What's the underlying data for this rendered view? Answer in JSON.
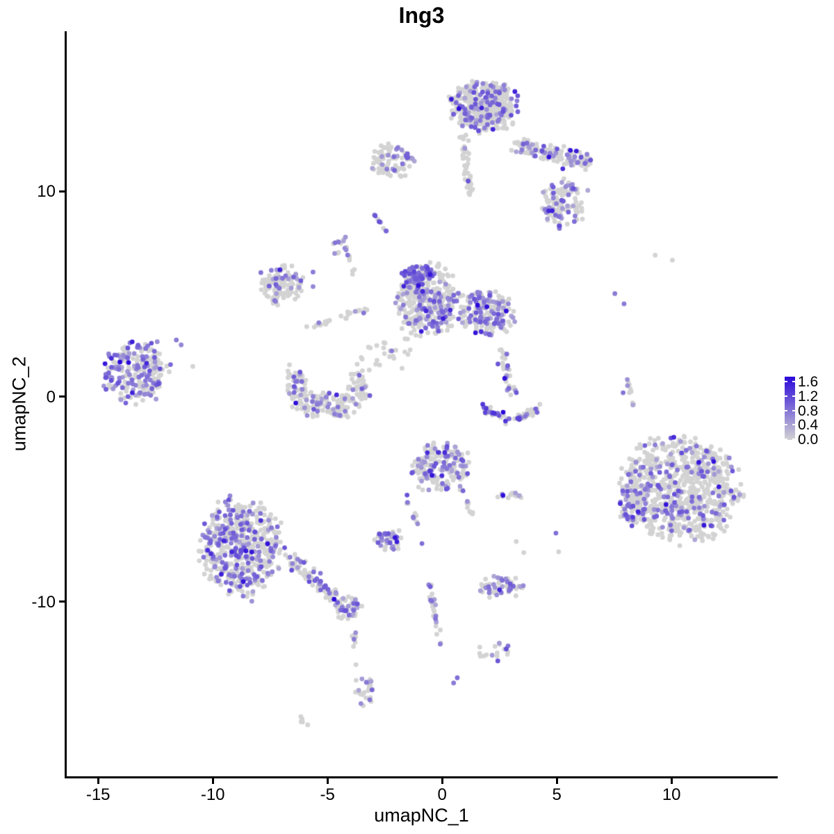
{
  "title": "Ing3",
  "axes": {
    "x": {
      "label": "umapNC_1",
      "tick_values": [
        -15,
        -10,
        -5,
        0,
        5,
        10
      ],
      "tick_labels": [
        "-15",
        "-10",
        "-5",
        "0",
        "5",
        "10"
      ]
    },
    "y": {
      "label": "umapNC_2",
      "tick_values": [
        10,
        0,
        -10
      ],
      "tick_labels": [
        "10",
        "0",
        "-10"
      ]
    }
  },
  "legend": {
    "entries": [
      {
        "text": "1.6",
        "value": 1.6
      },
      {
        "text": "1.2",
        "value": 1.2
      },
      {
        "text": "0.8",
        "value": 0.8
      },
      {
        "text": "0.4",
        "value": 0.4
      },
      {
        "text": "0.0",
        "value": 0.0
      }
    ],
    "low_color": "#D3D3D3",
    "high_color": "#2B09DA"
  },
  "chart_data": {
    "type": "scatter",
    "title": "Ing3",
    "xlabel": "umapNC_1",
    "ylabel": "umapNC_2",
    "xlim": [
      -16.4,
      14.6
    ],
    "ylim": [
      -18.5,
      17.8
    ],
    "grid": false,
    "legend_position": "right",
    "point_radius_px": 3.4,
    "value_max": 1.6,
    "color_low": "#D3D3D3",
    "color_high": "#2B09DA",
    "clusters": [
      {
        "name": "top-main-blob",
        "cx": 1.85,
        "cy": 14.2,
        "rx": 1.35,
        "ry": 1.15,
        "n": 430,
        "expr": 0.2
      },
      {
        "name": "top-left-subblob",
        "cx": -2.16,
        "cy": 11.5,
        "rx": 0.9,
        "ry": 0.75,
        "n": 85,
        "expr": 0.25
      },
      {
        "name": "top-arm-descender",
        "cx": 5.27,
        "cy": 9.45,
        "rx": 1.0,
        "ry": 1.1,
        "n": 115,
        "expr": 0.33
      },
      {
        "name": "small-knot-upper-mid",
        "cx": -4.46,
        "cy": 7.3,
        "rx": 0.35,
        "ry": 0.5,
        "n": 12,
        "expr": 0.35
      },
      {
        "name": "mid-left-ring",
        "cx": -7.07,
        "cy": 5.43,
        "rx": 0.92,
        "ry": 0.95,
        "n": 115,
        "expr": 0.2
      },
      {
        "name": "central-cluster",
        "cx": -0.64,
        "cy": 4.7,
        "rx": 1.3,
        "ry": 1.6,
        "n": 340,
        "expr": 0.3
      },
      {
        "name": "central-hot-top",
        "cx": -1.04,
        "cy": 5.95,
        "rx": 0.65,
        "ry": 0.45,
        "n": 65,
        "expr": 0.8,
        "v": [
          0.5,
          1.2
        ]
      },
      {
        "name": "right-of-center",
        "cx": 1.93,
        "cy": 4.05,
        "rx": 1.05,
        "ry": 1.05,
        "n": 170,
        "expr": 0.45
      },
      {
        "name": "bowl-left",
        "cx": -6.4,
        "cy": 0.4,
        "rx": 0.45,
        "ry": 1.05,
        "n": 60,
        "expr": 0.18
      },
      {
        "name": "bowl-bottom",
        "cx": -5.1,
        "cy": -0.45,
        "rx": 1.3,
        "ry": 0.6,
        "n": 110,
        "expr": 0.22
      },
      {
        "name": "bowl-right",
        "cx": -3.67,
        "cy": 0.4,
        "rx": 0.5,
        "ry": 0.75,
        "n": 45,
        "expr": 0.2
      },
      {
        "name": "sparse-center",
        "cx": -2.46,
        "cy": 2.25,
        "rx": 1.2,
        "ry": 1.1,
        "n": 26,
        "expr": 0.12
      },
      {
        "name": "left-main-cluster",
        "cx": -13.31,
        "cy": 1.2,
        "rx": 1.3,
        "ry": 1.42,
        "n": 235,
        "expr": 0.42
      },
      {
        "name": "center-bottom-cluster",
        "cx": -0.07,
        "cy": -3.45,
        "rx": 1.15,
        "ry": 1.1,
        "n": 180,
        "expr": 0.38
      },
      {
        "name": "small-horizontal-cluster",
        "cx": 2.96,
        "cy": -4.9,
        "rx": 0.6,
        "ry": 0.22,
        "n": 14,
        "expr": 0.5
      },
      {
        "name": "small-below-center",
        "cx": -2.34,
        "cy": -6.95,
        "rx": 0.65,
        "ry": 0.5,
        "n": 44,
        "expr": 0.45
      },
      {
        "name": "bottom-left-main",
        "cx": -8.79,
        "cy": -7.4,
        "rx": 1.65,
        "ry": 2.15,
        "n": 500,
        "expr": 0.36
      },
      {
        "name": "tail-end-knob",
        "cx": -4.13,
        "cy": -10.35,
        "rx": 0.55,
        "ry": 0.55,
        "n": 48,
        "expr": 0.4
      },
      {
        "name": "lower-knob",
        "cx": -3.4,
        "cy": -14.3,
        "rx": 0.4,
        "ry": 0.85,
        "n": 26,
        "expr": 0.4
      },
      {
        "name": "small-mid-bottom",
        "cx": 2.51,
        "cy": -9.3,
        "rx": 0.85,
        "ry": 0.5,
        "n": 58,
        "expr": 0.35
      },
      {
        "name": "bottom-wedge",
        "cx": 2.27,
        "cy": -12.45,
        "rx": 0.65,
        "ry": 0.45,
        "n": 18,
        "expr": 0.4
      },
      {
        "name": "right-main-cluster",
        "cx": 10.42,
        "cy": -4.55,
        "rx": 2.3,
        "ry": 2.4,
        "n": 780,
        "expr": 0.16
      },
      {
        "name": "right-left-arm",
        "cx": 8.24,
        "cy": -5.35,
        "rx": 0.55,
        "ry": 0.95,
        "n": 55,
        "expr": 0.45
      }
    ],
    "strands": [
      {
        "name": "top-right-arm",
        "x1": 3.1,
        "y1": 12.3,
        "x2": 6.4,
        "y2": 11.4,
        "w": 16,
        "n": 150,
        "expr": 0.3
      },
      {
        "name": "under-top-strand",
        "x1": 0.9,
        "y1": 12.75,
        "x2": 1.25,
        "y2": 9.9,
        "w": 8,
        "n": 50,
        "expr": 0.1
      },
      {
        "name": "tiny-diagonal",
        "x1": -3.1,
        "y1": 9.0,
        "x2": -2.4,
        "y2": 8.1,
        "w": 4,
        "n": 9,
        "expr": 0.5
      },
      {
        "name": "mid-chain",
        "x1": -5.85,
        "y1": 3.4,
        "x2": -3.1,
        "y2": 4.3,
        "w": 6,
        "n": 26,
        "expr": 0.25
      },
      {
        "name": "vertical-mini",
        "x1": -4.3,
        "y1": 7.7,
        "x2": -3.75,
        "y2": 5.6,
        "w": 4,
        "n": 12,
        "expr": 0.3
      },
      {
        "name": "hook-upper-strand",
        "x1": 2.6,
        "y1": 2.45,
        "x2": 3.0,
        "y2": 0.12,
        "w": 10,
        "n": 32,
        "expr": 0.4
      },
      {
        "name": "cb-left-strand",
        "x1": -1.75,
        "y1": -4.55,
        "x2": -1.05,
        "y2": -6.15,
        "w": 4,
        "n": 12,
        "expr": 0.35
      },
      {
        "name": "cb-right-strand",
        "x1": 0.75,
        "y1": -4.3,
        "x2": 1.35,
        "y2": -5.75,
        "w": 4,
        "n": 12,
        "expr": 0.2
      },
      {
        "name": "bl-tail",
        "x1": -6.6,
        "y1": -7.95,
        "x2": -4.6,
        "y2": -9.85,
        "w": 13,
        "n": 85,
        "expr": 0.28
      },
      {
        "name": "below-knob-strand",
        "x1": -3.9,
        "y1": -11.2,
        "x2": -3.7,
        "y2": -13.0,
        "w": 4,
        "n": 9,
        "expr": 0.3
      },
      {
        "name": "bottom-small-pair",
        "x1": -6.2,
        "y1": -15.6,
        "x2": -5.9,
        "y2": -16.1,
        "w": 3,
        "n": 5,
        "expr": 0.3
      },
      {
        "name": "mid-vertical-strand",
        "x1": -0.55,
        "y1": -9.05,
        "x2": -0.1,
        "y2": -12.1,
        "w": 5,
        "n": 28,
        "expr": 0.3
      },
      {
        "name": "right-top-strand",
        "x1": 8.1,
        "y1": 1.0,
        "x2": 8.3,
        "y2": -0.36,
        "w": 5,
        "n": 10,
        "expr": 0.3
      }
    ],
    "arcs": [
      {
        "name": "hook-crescent",
        "p0": [
          1.72,
          -0.39
        ],
        "p1": [
          3.1,
          -1.9
        ],
        "p2": [
          4.6,
          -0.15
        ],
        "w": 7,
        "n": 55,
        "expr": 0.45,
        "v": [
          0.5,
          1.3
        ]
      }
    ],
    "extra_points": [
      [
        -11.59,
        2.76,
        0.7
      ],
      [
        -11.38,
        2.52,
        0.6
      ],
      [
        -10.87,
        1.47,
        0
      ],
      [
        7.53,
        5.02,
        0.7
      ],
      [
        7.93,
        4.52,
        0.7
      ],
      [
        9.29,
        6.89,
        0
      ],
      [
        10.04,
        6.65,
        0
      ],
      [
        -0.88,
        -7.16,
        0.8
      ],
      [
        3.23,
        -7.06,
        0
      ],
      [
        3.56,
        -7.6,
        0
      ],
      [
        4.96,
        -6.65,
        0.8
      ],
      [
        5.08,
        -7.56,
        0
      ],
      [
        0.66,
        -13.7,
        0.8
      ],
      [
        0.5,
        -13.95,
        0.7
      ],
      [
        2.66,
        -0.76,
        1.6
      ],
      [
        5.59,
        12.0,
        1.5
      ],
      [
        5.26,
        11.1,
        1.3
      ],
      [
        -9.17,
        -7.56,
        1.35
      ],
      [
        11.19,
        -3.2,
        1.5
      ],
      [
        10.1,
        -1.98,
        1.35
      ],
      [
        7.89,
        0.19,
        0.75
      ],
      [
        -5.63,
        6.07,
        0.7
      ],
      [
        -5.63,
        5.36,
        0.6
      ],
      [
        2.81,
        3.16,
        0
      ],
      [
        2.65,
        2.15,
        0
      ]
    ]
  }
}
